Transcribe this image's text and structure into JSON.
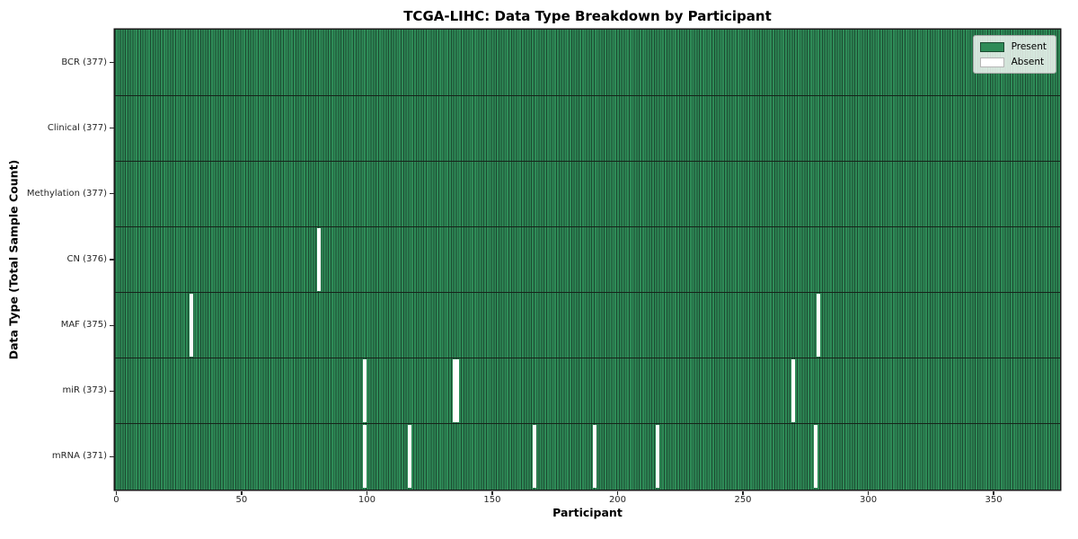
{
  "chart_data": {
    "type": "heatmap",
    "title": "TCGA-LIHC: Data Type Breakdown by Participant",
    "xlabel": "Participant",
    "ylabel": "Data Type (Total Sample Count)",
    "n_participants": 377,
    "x_ticks": [
      0,
      50,
      100,
      150,
      200,
      250,
      300,
      350
    ],
    "rows": [
      {
        "name": "BCR",
        "label": "BCR (377)",
        "total": 377,
        "absent_participants": []
      },
      {
        "name": "Clinical",
        "label": "Clinical (377)",
        "total": 377,
        "absent_participants": []
      },
      {
        "name": "Methylation",
        "label": "Methylation (377)",
        "total": 377,
        "absent_participants": []
      },
      {
        "name": "CN",
        "label": "CN (376)",
        "total": 376,
        "absent_participants": [
          81
        ]
      },
      {
        "name": "MAF",
        "label": "MAF (375)",
        "total": 375,
        "absent_participants": [
          30,
          280
        ]
      },
      {
        "name": "miR",
        "label": "miR (373)",
        "total": 373,
        "absent_participants": [
          99,
          135,
          136,
          270
        ]
      },
      {
        "name": "mRNA",
        "label": "mRNA (371)",
        "total": 371,
        "absent_participants": [
          99,
          117,
          167,
          191,
          216,
          279
        ]
      }
    ],
    "legend": [
      {
        "label": "Present",
        "color": "#2e8b57"
      },
      {
        "label": "Absent",
        "color": "#ffffff"
      }
    ],
    "colors": {
      "present": "#2e8b57",
      "cell_edge": "#1c4a31",
      "absent": "#ffffff",
      "row_divider": "#16231a",
      "spine": "#1a1a1a",
      "tick_label": "#262626",
      "legend_bg": "rgba(255,255,255,0.8)",
      "legend_border": "#a6a6a6",
      "absent_swatch_border": "#b5b5b5"
    }
  }
}
